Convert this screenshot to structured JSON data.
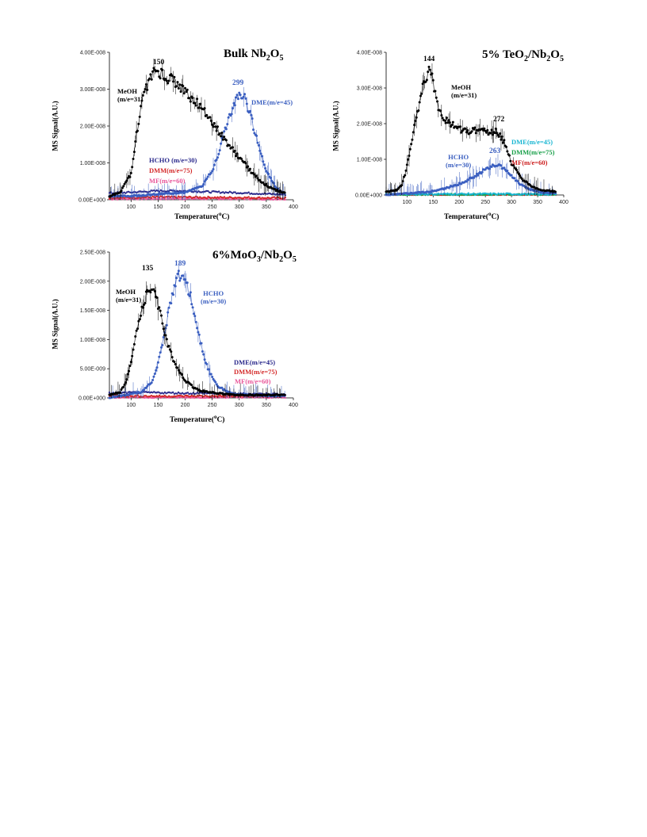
{
  "colors": {
    "meoh": "#000000",
    "hcho_blue": "#3b5fc0",
    "dme_blue": "#3b5fc0",
    "navy": "#2b2a8c",
    "dmm": "#d42a2a",
    "mf": "#e8569a",
    "cyan": "#19b6d2",
    "green": "#1aa04a",
    "red": "#cc1f1f"
  },
  "chart_data": [
    {
      "id": "a",
      "type": "scatter",
      "title": {
        "pre": "Bulk Nb",
        "s1": "2",
        "mid": "O",
        "s2": "5"
      },
      "xlabel": {
        "pre": "Temperature(",
        "sup": "o",
        "post": "C)"
      },
      "ylabel": "MS Signal(A.U.)",
      "xlim": [
        60,
        400
      ],
      "ylim": [
        0,
        4e-08
      ],
      "xticks": [
        "100",
        "150",
        "200",
        "250",
        "300",
        "350",
        "400"
      ],
      "yticks": [
        "0.00E+000",
        "1.00E-008",
        "2.00E-008",
        "3.00E-008",
        "4.00E-008"
      ],
      "labels": {
        "meoh": [
          "MeOH",
          "(m/e=31)"
        ],
        "dme": "DME(m/e=45)",
        "hcho": "HCHO (m/e=30)",
        "dmm": "DMM(m/e=75)",
        "mf": "MF(m/e=60)"
      },
      "peaks": {
        "meoh": "150",
        "dme": "299"
      },
      "series": [
        {
          "name": "MeOH(m/e=31)",
          "color": "#000000",
          "x": [
            60,
            80,
            100,
            110,
            120,
            130,
            140,
            150,
            160,
            170,
            180,
            200,
            220,
            240,
            260,
            280,
            300,
            320,
            340,
            360,
            385
          ],
          "y": [
            1e-09,
            2e-09,
            7e-09,
            1.8e-08,
            2.6e-08,
            3.1e-08,
            3.4e-08,
            3.5e-08,
            3.4e-08,
            3.3e-08,
            3.2e-08,
            2.95e-08,
            2.65e-08,
            2.3e-08,
            1.9e-08,
            1.5e-08,
            1.15e-08,
            8e-09,
            5e-09,
            3e-09,
            1.8e-09
          ]
        },
        {
          "name": "DME(m/e=45)",
          "color": "#3b5fc0",
          "x": [
            60,
            100,
            150,
            200,
            230,
            250,
            260,
            270,
            280,
            290,
            300,
            310,
            320,
            330,
            340,
            350,
            360,
            370,
            385
          ],
          "y": [
            1e-09,
            1e-09,
            1.5e-09,
            2e-09,
            3.5e-09,
            8e-09,
            1.2e-08,
            1.7e-08,
            2.2e-08,
            2.6e-08,
            2.9e-08,
            2.75e-08,
            2.3e-08,
            1.8e-08,
            1.25e-08,
            8e-09,
            5e-09,
            3e-09,
            1.5e-09
          ]
        },
        {
          "name": "HCHO (m/e=30)",
          "color": "#2b2a8c",
          "x": [
            60,
            100,
            150,
            200,
            250,
            300,
            350,
            385
          ],
          "y": [
            1.8e-09,
            2e-09,
            2.4e-09,
            2.4e-09,
            2.1e-09,
            1.9e-09,
            1.6e-09,
            1.4e-09
          ]
        },
        {
          "name": "DMM(m/e=75)",
          "color": "#d42a2a",
          "x": [
            60,
            100,
            150,
            200,
            250,
            300,
            350,
            385
          ],
          "y": [
            5e-10,
            6e-10,
            7e-10,
            7e-10,
            6e-10,
            6e-10,
            5e-10,
            5e-10
          ]
        },
        {
          "name": "MF(m/e=60)",
          "color": "#e8569a",
          "x": [
            60,
            100,
            150,
            200,
            250,
            300,
            350,
            385
          ],
          "y": [
            2e-10,
            3e-10,
            3e-10,
            3e-10,
            3e-10,
            3e-10,
            2e-10,
            2e-10
          ]
        }
      ]
    },
    {
      "id": "b",
      "type": "scatter",
      "title": {
        "pre": "5% TeO",
        "s1": "2",
        "mid": "/Nb",
        "s2": "2",
        "post": "O",
        "s3": "5"
      },
      "xlabel": {
        "pre": "Temperature(",
        "sup": "o",
        "post": "C)"
      },
      "ylabel": "MS Signal(A.U.)",
      "xlim": [
        60,
        400
      ],
      "ylim": [
        0,
        4.5e-08
      ],
      "xticks": [
        "100",
        "150",
        "200",
        "250",
        "300",
        "350",
        "400"
      ],
      "yticks": [
        "0.00E+000",
        "1.00E-008",
        "2.00E-008",
        "3.00E-008",
        "4.00E-008"
      ],
      "labels": {
        "meoh": [
          "MeOH",
          "(m/e=31)"
        ],
        "hcho": [
          "HCHO",
          "(m/e=30)"
        ],
        "dme": "DME(m/e=45)",
        "dmm": "DMM(m/e=75)",
        "mf": "MF(m/e=60)"
      },
      "peaks": {
        "meoh": "144",
        "meoh2": "272",
        "hcho": "263"
      },
      "series": [
        {
          "name": "MeOH (m/e=31)",
          "color": "#000000",
          "x": [
            60,
            80,
            90,
            100,
            110,
            120,
            130,
            140,
            145,
            150,
            160,
            170,
            180,
            200,
            220,
            240,
            260,
            272,
            285,
            300,
            320,
            340,
            360,
            385
          ],
          "y": [
            1e-09,
            1.5e-09,
            3e-09,
            9e-09,
            1.8e-08,
            2.6e-08,
            3.4e-08,
            3.85e-08,
            3.95e-08,
            3.5e-08,
            2.8e-08,
            2.45e-08,
            2.25e-08,
            2.1e-08,
            2e-08,
            2.05e-08,
            1.95e-08,
            2e-08,
            1.7e-08,
            1e-08,
            5e-09,
            2.5e-09,
            1.5e-09,
            1e-09
          ]
        },
        {
          "name": "HCHO (m/e=30)",
          "color": "#3b5fc0",
          "x": [
            60,
            100,
            140,
            160,
            180,
            200,
            220,
            240,
            260,
            270,
            280,
            300,
            320,
            340,
            360,
            385
          ],
          "y": [
            0,
            5e-10,
            1e-09,
            1.5e-09,
            2.5e-09,
            3.5e-09,
            5e-09,
            7e-09,
            9e-09,
            9.5e-09,
            9e-09,
            6e-09,
            3e-09,
            1.5e-09,
            8e-10,
            5e-10
          ]
        },
        {
          "name": "DME(m/e=45)",
          "color": "#19b6d2",
          "x": [
            60,
            100,
            150,
            200,
            250,
            300,
            350,
            385
          ],
          "y": [
            2e-10,
            3e-10,
            3e-10,
            3e-10,
            3e-10,
            3e-10,
            2e-10,
            2e-10
          ]
        },
        {
          "name": "DMM(m/e=75)",
          "color": "#1aa04a",
          "x": [
            60,
            100,
            150,
            200,
            250,
            300,
            350,
            385
          ],
          "y": [
            1e-10,
            1e-10,
            1e-10,
            1e-10,
            1e-10,
            1e-10,
            1e-10,
            1e-10
          ]
        },
        {
          "name": "MF(m/e=60)",
          "color": "#cc1f1f",
          "x": [
            60,
            100,
            150,
            200,
            250,
            300,
            350,
            385
          ],
          "y": [
            0,
            0,
            0,
            0,
            0,
            0,
            0,
            0
          ]
        }
      ]
    },
    {
      "id": "c",
      "type": "scatter",
      "title": {
        "pre": "6%MoO",
        "s1": "3",
        "mid": "/Nb",
        "s2": "2",
        "post": "O",
        "s3": "5"
      },
      "xlabel": {
        "pre": "Temperature(",
        "sup": "o",
        "post": "C)"
      },
      "ylabel": "MS Signal(A.U.)",
      "xlim": [
        60,
        400
      ],
      "ylim": [
        0,
        2.5e-08
      ],
      "xticks": [
        "100",
        "150",
        "200",
        "250",
        "300",
        "350",
        "400"
      ],
      "yticks": [
        "0.00E+000",
        "5.00E-009",
        "1.00E-008",
        "1.50E-008",
        "2.00E-008",
        "2.50E-008"
      ],
      "labels": {
        "meoh": [
          "MeOH",
          "(m/e=31)"
        ],
        "hcho": [
          "HCHO",
          "(m/e=30)"
        ],
        "dme": "DME(m/e=45)",
        "dmm": "DMM(m/e=75)",
        "mf": "MF(m/e=60)"
      },
      "peaks": {
        "meoh": "135",
        "hcho": "189"
      },
      "series": [
        {
          "name": "MeOH (m/e=31)",
          "color": "#000000",
          "x": [
            60,
            80,
            90,
            100,
            110,
            120,
            130,
            135,
            145,
            155,
            165,
            180,
            200,
            220,
            240,
            260,
            280,
            300,
            350,
            385
          ],
          "y": [
            5e-10,
            1e-09,
            2.5e-09,
            6e-09,
            1.1e-08,
            1.5e-08,
            1.8e-08,
            1.85e-08,
            1.75e-08,
            1.45e-08,
            1e-08,
            6e-09,
            3e-09,
            1.5e-09,
            1e-09,
            8e-10,
            6e-10,
            5e-10,
            5e-10,
            5e-10
          ]
        },
        {
          "name": "HCHO (m/e=30)",
          "color": "#3b5fc0",
          "x": [
            60,
            120,
            140,
            150,
            160,
            170,
            180,
            189,
            200,
            210,
            220,
            230,
            240,
            250,
            260,
            280,
            300,
            350,
            385
          ],
          "y": [
            0,
            1e-09,
            3e-09,
            6e-09,
            1e-08,
            1.5e-08,
            1.9e-08,
            2.1e-08,
            2e-08,
            1.75e-08,
            1.3e-08,
            9e-09,
            5.5e-09,
            3.5e-09,
            2e-09,
            1e-09,
            6e-10,
            4e-10,
            3e-10
          ]
        },
        {
          "name": "DME(m/e=45)",
          "color": "#2b2a8c",
          "x": [
            60,
            100,
            150,
            200,
            250,
            300,
            350,
            385
          ],
          "y": [
            8e-10,
            9e-10,
            9e-10,
            8e-10,
            8e-10,
            7e-10,
            7e-10,
            6e-10
          ]
        },
        {
          "name": "DMM(m/e=75)",
          "color": "#d42a2a",
          "x": [
            60,
            100,
            150,
            200,
            250,
            300,
            350,
            385
          ],
          "y": [
            3e-10,
            3e-10,
            3e-10,
            3e-10,
            3e-10,
            3e-10,
            3e-10,
            3e-10
          ]
        },
        {
          "name": "MF(m/e=60)",
          "color": "#e8569a",
          "x": [
            60,
            100,
            150,
            200,
            250,
            300,
            350,
            385
          ],
          "y": [
            1e-10,
            1e-10,
            1e-10,
            1e-10,
            1e-10,
            1e-10,
            1e-10,
            1e-10
          ]
        }
      ]
    }
  ]
}
